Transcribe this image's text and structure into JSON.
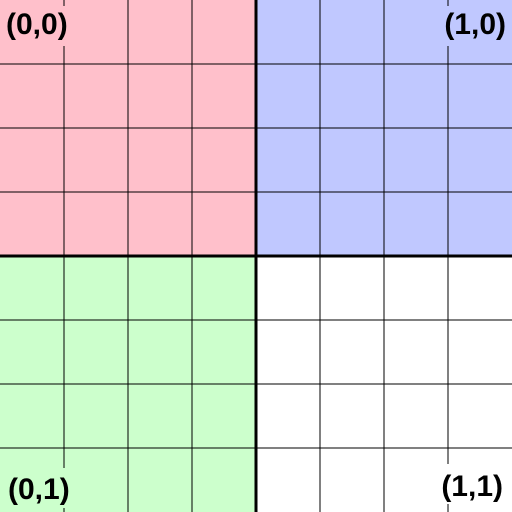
{
  "grid": {
    "cells_per_side": 8,
    "line_color": "#000000"
  },
  "quadrants": [
    {
      "id": "q-0-0",
      "label": "(0,0)",
      "color": "#ffc0cb"
    },
    {
      "id": "q-1-0",
      "label": "(1,0)",
      "color": "#c0c8ff"
    },
    {
      "id": "q-0-1",
      "label": "(0,1)",
      "color": "#ccffcc"
    },
    {
      "id": "q-1-1",
      "label": "(1,1)",
      "color": "#ffffff"
    }
  ]
}
